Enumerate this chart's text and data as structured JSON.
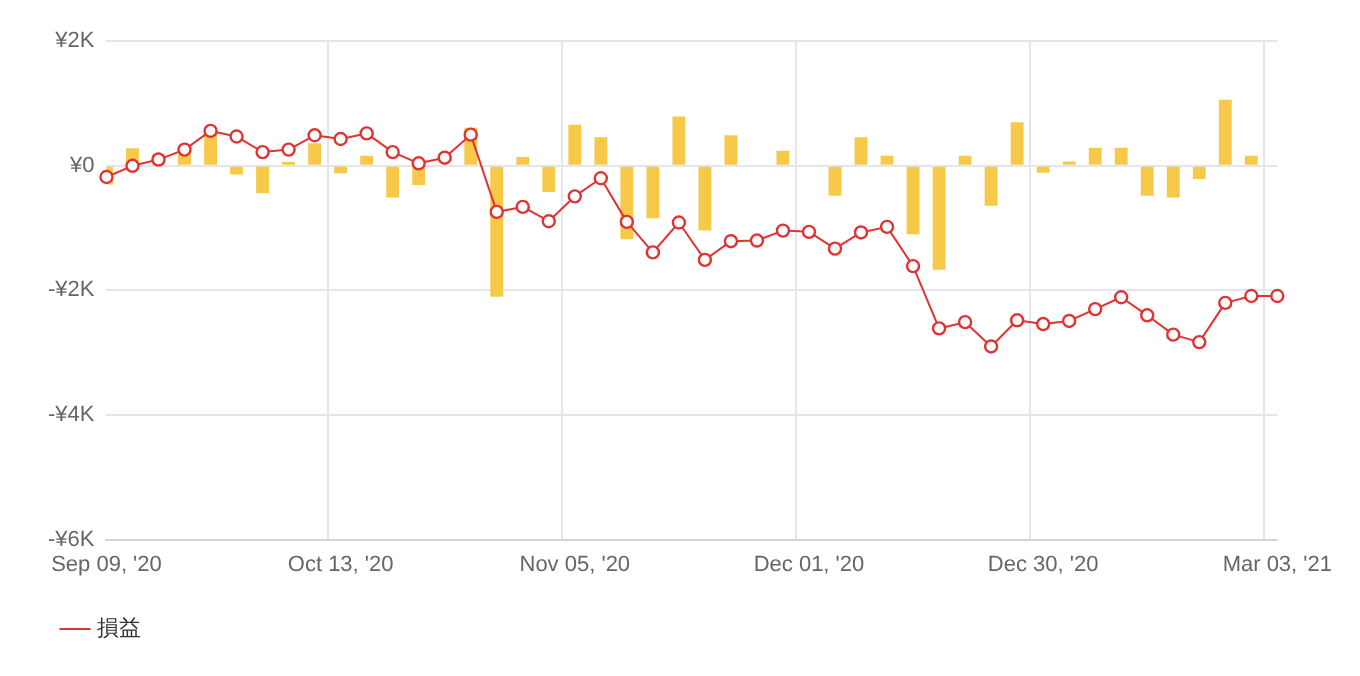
{
  "chart_data": {
    "type": "bar",
    "categories": [
      "Sep 09, '20",
      null,
      null,
      null,
      null,
      null,
      null,
      null,
      null,
      "Oct 13, '20",
      null,
      null,
      null,
      null,
      null,
      null,
      null,
      null,
      "Nov 05, '20",
      null,
      null,
      null,
      null,
      null,
      null,
      null,
      null,
      "Dec 01, '20",
      null,
      null,
      null,
      null,
      null,
      null,
      null,
      null,
      "Dec 30, '20",
      null,
      null,
      null,
      null,
      null,
      null,
      null,
      null,
      "Mar 03, '21"
    ],
    "series": [
      {
        "color": "#f7c948",
        "values": [
          -300,
          280,
          190,
          220,
          590,
          -140,
          -440,
          60,
          360,
          -120,
          160,
          -510,
          -310,
          null,
          610,
          -2100,
          140,
          -420,
          660,
          460,
          -1180,
          -840,
          790,
          -1040,
          490,
          null,
          240,
          null,
          -480,
          460,
          160,
          -1100,
          -1670,
          160,
          -640,
          700,
          -110,
          70,
          290,
          290,
          -480,
          -510,
          -210,
          1060,
          160,
          null
        ]
      },
      {
        "type": "line",
        "name": "損益",
        "color": "#e03333",
        "values": [
          -180,
          0,
          100,
          260,
          560,
          470,
          220,
          260,
          490,
          430,
          520,
          220,
          40,
          130,
          500,
          -740,
          -660,
          -890,
          -490,
          -200,
          -900,
          -1390,
          -910,
          -1510,
          -1210,
          -1200,
          -1040,
          -1060,
          -1330,
          -1070,
          -980,
          -1610,
          -2610,
          -2510,
          -2900,
          -2480,
          -2540,
          -2490,
          -2300,
          -2110,
          -2400,
          -2710,
          -2830,
          -2200,
          -2090,
          -2090
        ]
      }
    ],
    "ylim": [
      -6000,
      2000
    ],
    "yticks": [
      {
        "value": -6000,
        "label": "-¥6K"
      },
      {
        "value": -4000,
        "label": "-¥4K"
      },
      {
        "value": -2000,
        "label": "-¥2K"
      },
      {
        "value": 0,
        "label": "¥0"
      },
      {
        "value": 2000,
        "label": "¥2K"
      }
    ],
    "grid": true,
    "legend": "bottom",
    "marker": "circle",
    "line_style": "solid"
  }
}
